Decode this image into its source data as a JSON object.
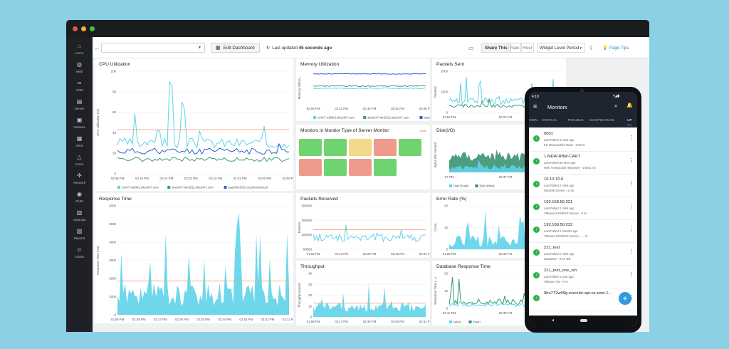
{
  "toolbar": {
    "edit_label": "Edit Dashboard",
    "last_updated_label": "Last updated",
    "last_updated_value": "45 seconds ago",
    "share_label": "Share This",
    "raw_label": "Raw",
    "hour_label": "Hour",
    "period_label": "Widget Level Period",
    "tips_label": "Page Tips"
  },
  "sidebar": {
    "items": [
      {
        "label": "Home",
        "icon": "home-icon",
        "active": true
      },
      {
        "label": "Web",
        "icon": "globe-icon"
      },
      {
        "label": "APM",
        "icon": "binoculars-icon"
      },
      {
        "label": "Server",
        "icon": "server-icon"
      },
      {
        "label": "VMware",
        "icon": "vmware-icon"
      },
      {
        "label": "AWS",
        "icon": "aws-icon"
      },
      {
        "label": "Azure",
        "icon": "azure-icon"
      },
      {
        "label": "Network",
        "icon": "network-icon"
      },
      {
        "label": "RUM",
        "icon": "rum-icon"
      },
      {
        "label": "AppLogs",
        "icon": "applogs-icon"
      },
      {
        "label": "Reports",
        "icon": "reports-icon"
      },
      {
        "label": "Admin",
        "icon": "admin-icon"
      }
    ]
  },
  "colors": {
    "accent": "#2eb8d8",
    "teal": "#5fd3e8",
    "green": "#3a9c78",
    "blue": "#2f5fd0",
    "threshold": "#f2a37c",
    "ok": "#2eb34a"
  },
  "panels": {
    "cpu": {
      "title": "CPU Utilization",
      "ylabel": "CPU Utilization (%)",
      "yticks": [
        "100",
        "80",
        "60",
        "40",
        "20",
        "0"
      ],
      "xticks": [
        "02:06 PM",
        "02:15 PM",
        "02:24 PM",
        "02:33 PM",
        "02:42 PM",
        "02:51 PM",
        "03:00 PM",
        "03:09 PM"
      ],
      "legend": [
        "s24x7-w2k8r2.site24x7.com",
        "site24x7-win2012.site24x7.com",
        "spadmin2010.mydomain.local"
      ]
    },
    "memory": {
      "title": "Memory Utilization",
      "ylabel": "Memory Utiliza...",
      "xticks": [
        "02:06 PM",
        "02:21 PM",
        "02:36 PM",
        "02:51 PM",
        "03:06 PM"
      ],
      "legend": [
        "s24x7-w2k8r2.site24x7.com",
        "site24x7-win2012.site24x7.com",
        "spadmin2010.mydomain.local"
      ]
    },
    "packets_sent": {
      "title": "Packets Sent",
      "ylabel": "Packets",
      "yticks": [
        "2000",
        "1000",
        "0"
      ],
      "xticks": [
        "01:52 PM",
        "02:20 PM",
        "02:48 PM"
      ]
    },
    "monitors": {
      "title": "Monitors in Monitor Type of Server Monitor",
      "live": "Live",
      "cells": [
        "#6fd36f",
        "#6fd36f",
        "#f3d98a",
        "#ef9b8c",
        "#6fd36f",
        "#ef9b8c",
        "#6fd36f",
        "#ef9b8c",
        "#6fd36f"
      ]
    },
    "disk": {
      "title": "Disk(I/O)",
      "ylabel": "Bytes Per Second",
      "xticks": [
        "07 PM",
        "02:37 PM",
        "03:07 PM"
      ],
      "legend": [
        "Disk Reads",
        "Disk Writes"
      ]
    },
    "response": {
      "title": "Response Time",
      "ylabel": "Response Time (ms)",
      "yticks": [
        "6000",
        "5000",
        "4000",
        "3000",
        "2000",
        "1000",
        "0"
      ],
      "xticks": [
        "01:59 PM",
        "02:08 PM",
        "02:17 PM",
        "02:26 PM",
        "02:35 PM",
        "02:44 PM",
        "02:53 PM",
        "03:02 PM",
        "03:11 PM"
      ]
    },
    "packets_received": {
      "title": "Packets Received",
      "ylabel": "Packets",
      "yticks": [
        "200000",
        "150000",
        "100000",
        "50000"
      ],
      "xticks": [
        "01:52 PM",
        "02:10 PM",
        "02:28 PM",
        "02:46 PM",
        "03:04 PM"
      ]
    },
    "error": {
      "title": "Error Rate (%)",
      "ylabel": "Count",
      "yticks": [
        "20",
        "10",
        "0"
      ],
      "xticks": [
        "01:59 PM",
        "02:35 PM",
        "03:11 PM"
      ]
    },
    "throughput": {
      "title": "Throughput",
      "ylabel": "Throughput (rpm)",
      "yticks": [
        "40",
        "30",
        "20",
        "10",
        "0"
      ],
      "xticks": [
        "01:59 PM",
        "02:17 PM",
        "02:35 PM",
        "02:53 PM",
        "03:11 PM"
      ]
    },
    "dbresp": {
      "title": "Database Response Time",
      "ylabel": "Response Time (...)",
      "yticks": [
        "20",
        "10",
        "0"
      ],
      "xticks": [
        "02:11 PM",
        "02:39 PM",
        "03:07 PM"
      ],
      "legend": [
        "select",
        "insert"
      ]
    }
  },
  "phone": {
    "time": "4:18",
    "title": "Monitors",
    "tabs": [
      "OWN",
      "CRITICAL",
      "TROUBLE",
      "MAINTENANCE",
      "UP"
    ],
    "active_tab": "UP",
    "items": [
      {
        "name": "0001",
        "polled": "Last Polled  4 mins ago",
        "type": "EC Memcached Node - 0.83 %"
      },
      {
        "name": "1-NEW-RBM-CART",
        "polled": "Last Polled  55 secs ago",
        "type": "Web Transaction (Browser) - 14641 ms"
      },
      {
        "name": "10.10.10.6",
        "polled": "Last Polled  2 mins ago",
        "type": "Network Device - 1 ms"
      },
      {
        "name": "192.168.50.221",
        "polled": "Last Polled  2 mins ago",
        "type": "VMware ESX/ESXi Server - 5 %"
      },
      {
        "name": "192.168.50.222",
        "polled": "Last Polled  2 months ago",
        "type": "VMware ESX/ESXi Server - - - %"
      },
      {
        "name": "221_test",
        "polled": "Last Polled  2 mins ago",
        "type": "Datastore - 0.47 GB"
      },
      {
        "name": "221_test_one_vm",
        "polled": "Last Polled  1 year ago",
        "type": "VMware VM - 0 %"
      },
      {
        "name": "9hu772w99g.execute-api.us-east-1...",
        "polled": "",
        "type": ""
      }
    ]
  }
}
